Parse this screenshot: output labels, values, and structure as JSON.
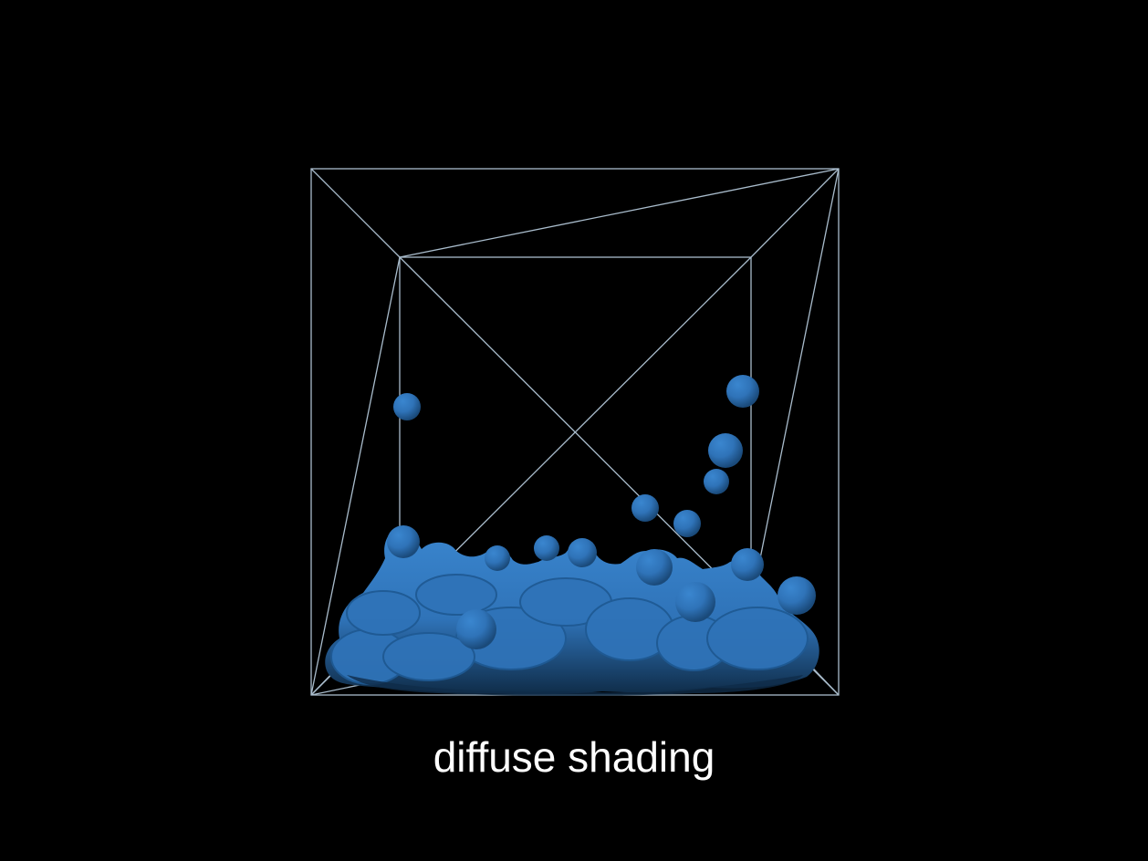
{
  "caption": "diffuse shading",
  "colors": {
    "background": "#000000",
    "box_lines": "#a9bccc",
    "fluid": "#2f73b8",
    "fluid_highlight": "#3a86cf",
    "fluid_shadow": "#123452",
    "caption_text": "#ffffff"
  },
  "render": {
    "subject": "fluid-blob-inside-wireframe-box",
    "shading": "diffuse"
  }
}
